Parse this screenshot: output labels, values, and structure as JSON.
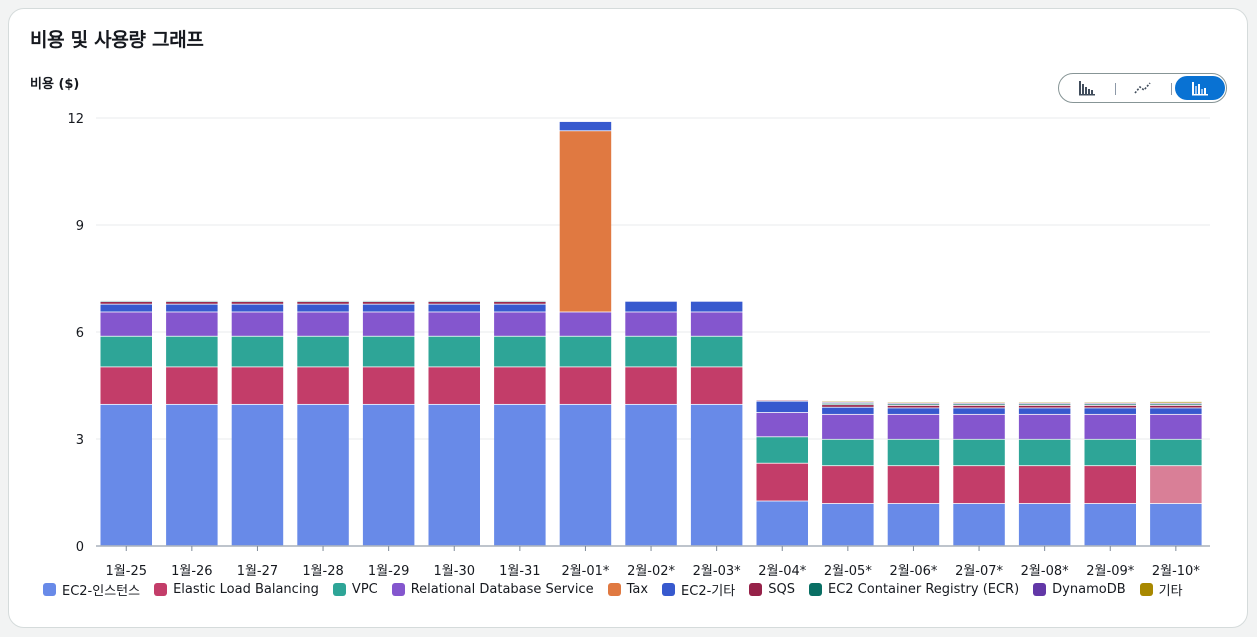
{
  "card": {
    "title": "비용 및 사용량 그래프"
  },
  "view_toggle": {
    "options": [
      {
        "name": "grouped-bar-view",
        "icon": "grouped-bar-chart-icon",
        "active": false
      },
      {
        "name": "line-view",
        "icon": "line-chart-icon",
        "active": false
      },
      {
        "name": "stacked-bar-view",
        "icon": "stacked-bar-chart-icon",
        "active": true
      }
    ]
  },
  "chart_data": {
    "type": "bar",
    "stacked": true,
    "title": "",
    "ylabel": "비용 ($)",
    "xlabel": "",
    "ylim": [
      0,
      12
    ],
    "yticks": [
      0,
      3,
      6,
      9,
      12
    ],
    "categories": [
      "1월-25",
      "1월-26",
      "1월-27",
      "1월-28",
      "1월-29",
      "1월-30",
      "1월-31",
      "2월-01*",
      "2월-02*",
      "2월-03*",
      "2월-04*",
      "2월-05*",
      "2월-06*",
      "2월-07*",
      "2월-08*",
      "2월-09*",
      "2월-10*"
    ],
    "forecast_from_index": 16,
    "series": [
      {
        "name": "EC2-인스턴스",
        "color": "#688ae8",
        "forecast_color": "#688ae8",
        "values": [
          3.96,
          3.96,
          3.96,
          3.96,
          3.96,
          3.96,
          3.96,
          3.96,
          3.96,
          3.96,
          1.25,
          1.18,
          1.18,
          1.18,
          1.18,
          1.18,
          1.18
        ]
      },
      {
        "name": "Elastic Load Balancing",
        "color": "#c33d69",
        "forecast_color": "#d97f97",
        "values": [
          1.05,
          1.05,
          1.05,
          1.05,
          1.05,
          1.05,
          1.05,
          1.05,
          1.05,
          1.05,
          1.06,
          1.06,
          1.06,
          1.06,
          1.06,
          1.06,
          1.06
        ]
      },
      {
        "name": "VPC",
        "color": "#2ea597",
        "forecast_color": "#2ea597",
        "values": [
          0.86,
          0.86,
          0.86,
          0.86,
          0.86,
          0.86,
          0.86,
          0.86,
          0.86,
          0.86,
          0.74,
          0.74,
          0.74,
          0.74,
          0.74,
          0.74,
          0.74
        ]
      },
      {
        "name": "Relational Database Service",
        "color": "#8456ce",
        "forecast_color": "#8456ce",
        "values": [
          0.68,
          0.68,
          0.68,
          0.68,
          0.68,
          0.68,
          0.68,
          0.68,
          0.68,
          0.68,
          0.68,
          0.7,
          0.7,
          0.7,
          0.7,
          0.7,
          0.7
        ]
      },
      {
        "name": "Tax",
        "color": "#e07941",
        "forecast_color": "#e07941",
        "values": [
          0,
          0,
          0,
          0,
          0,
          0,
          0,
          5.08,
          0,
          0,
          0,
          0,
          0,
          0,
          0,
          0,
          0
        ]
      },
      {
        "name": "EC2-기타",
        "color": "#3759ce",
        "forecast_color": "#3759ce",
        "values": [
          0.22,
          0.22,
          0.22,
          0.22,
          0.22,
          0.22,
          0.22,
          0.26,
          0.3,
          0.3,
          0.32,
          0.2,
          0.18,
          0.18,
          0.18,
          0.18,
          0.18
        ]
      },
      {
        "name": "SQS",
        "color": "#962249",
        "forecast_color": "#962249",
        "values": [
          0.07,
          0.07,
          0.07,
          0.07,
          0.07,
          0.07,
          0.07,
          0.02,
          0.02,
          0.02,
          0.03,
          0.07,
          0.07,
          0.07,
          0.07,
          0.07,
          0.07
        ]
      },
      {
        "name": "EC2 Container Registry (ECR)",
        "color": "#096f64",
        "forecast_color": "#096f64",
        "values": [
          0.03,
          0.03,
          0.03,
          0.03,
          0.03,
          0.03,
          0.03,
          0.02,
          0.02,
          0.02,
          0.02,
          0.04,
          0.04,
          0.04,
          0.04,
          0.04,
          0.04
        ]
      },
      {
        "name": "DynamoDB",
        "color": "#6237a7",
        "forecast_color": "#6237a7",
        "values": [
          0.02,
          0.02,
          0.02,
          0.02,
          0.02,
          0.02,
          0.02,
          0.01,
          0.01,
          0.01,
          0.02,
          0.03,
          0.03,
          0.03,
          0.03,
          0.03,
          0.03
        ]
      },
      {
        "name": "기타",
        "color": "#a88800",
        "forecast_color": "#a88800",
        "values": [
          0.01,
          0.01,
          0.01,
          0.01,
          0.01,
          0.01,
          0.01,
          0.01,
          0.01,
          0.01,
          0.02,
          0.03,
          0.03,
          0.03,
          0.03,
          0.03,
          0.04
        ]
      }
    ],
    "colors": {
      "grid": "#e9ebed",
      "axis": "#7d8998",
      "active_toggle": "#0972d3"
    }
  }
}
